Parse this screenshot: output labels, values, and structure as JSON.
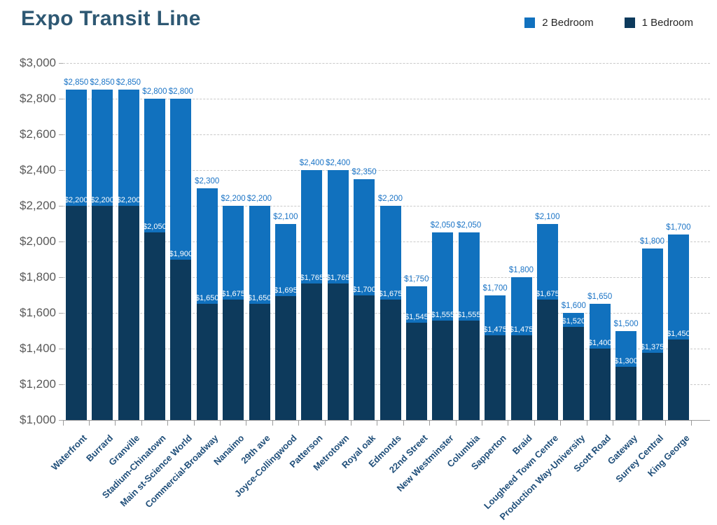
{
  "title": "Expo Transit Line",
  "legend": {
    "items": [
      {
        "label": "2 Bedroom",
        "color": "#1171BE"
      },
      {
        "label": "1 Bedroom",
        "color": "#0D3A5C"
      }
    ],
    "position": "top-right"
  },
  "colors": {
    "two_bedroom_bar": "#1171BE",
    "one_bedroom_bar": "#0D3A5C",
    "two_bedroom_value_label": "#1B74C6",
    "one_bedroom_value_label": "#FFFFFF",
    "title_text": "#2E5873",
    "station_label_text": "#1F4E79",
    "axis_label_text": "#595959",
    "gridline": "#C9C9C9",
    "axis_line": "#9B9B9B",
    "background": "#FFFFFF"
  },
  "chart_data": {
    "type": "bar",
    "variant": "overlaid-stacked-columns (1 Bedroom drawn in front of 2 Bedroom)",
    "title": "Expo Transit Line",
    "xlabel": "",
    "ylabel": "",
    "ylim": [
      1000,
      3000
    ],
    "grid": "horizontal dashed, every $200",
    "legend_position": "top-right",
    "categories": [
      "Waterfront",
      "Burrard",
      "Granville",
      "Stadium-Chinatown",
      "Main st-Science World",
      "Commercial-Broadway",
      "Nanaimo",
      "29th ave",
      "Joyce-Collingwood",
      "Patterson",
      "Metrotown",
      "Royal oak",
      "Edmonds",
      "22nd Street",
      "New Westminster",
      "Columbia",
      "Sapperton",
      "Braid",
      "Lougheed Town Centre",
      "Production Way-University",
      "Scott Road",
      "Gateway",
      "Surrey Central",
      "King George"
    ],
    "series": [
      {
        "name": "2 Bedroom",
        "color": "#1171BE",
        "values": [
          2850,
          2850,
          2850,
          2800,
          2800,
          2300,
          2200,
          2200,
          2100,
          2400,
          2400,
          2350,
          2200,
          1750,
          2050,
          2050,
          1700,
          1800,
          2100,
          1600,
          1650,
          1500,
          1800,
          1700
        ]
      },
      {
        "name": "1 Bedroom",
        "color": "#0D3A5C",
        "values": [
          2200,
          2200,
          2200,
          2050,
          1900,
          1650,
          1675,
          1650,
          1695,
          1765,
          1765,
          1700,
          1675,
          1545,
          1555,
          1555,
          1475,
          1475,
          1675,
          1520,
          1400,
          1300,
          1375,
          1450
        ]
      }
    ],
    "drawn_bar_top_overrides": {
      "22": 1960,
      "23": 2040
    },
    "y_ticks": [
      {
        "value": 3000,
        "label": "$3,000"
      },
      {
        "value": 2800,
        "label": "$2,800"
      },
      {
        "value": 2600,
        "label": "$2,600"
      },
      {
        "value": 2400,
        "label": "$2,400"
      },
      {
        "value": 2200,
        "label": "$2,200"
      },
      {
        "value": 2000,
        "label": "$2,000"
      },
      {
        "value": 1800,
        "label": "$1,800"
      },
      {
        "value": 1600,
        "label": "$1,600"
      },
      {
        "value": 1400,
        "label": "$1,400"
      },
      {
        "value": 1200,
        "label": "$1,200"
      },
      {
        "value": 1000,
        "label": "$1,000"
      }
    ]
  }
}
